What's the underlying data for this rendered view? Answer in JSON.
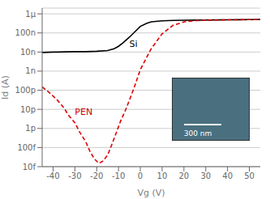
{
  "chart_data": {
    "type": "line",
    "xlabel": "Vg (V)",
    "ylabel": "Id (A)",
    "xlim": [
      -45,
      55
    ],
    "ylim": [
      1e-14,
      2e-06
    ],
    "log": "y",
    "grid": true,
    "xticks": [
      -40,
      -30,
      -20,
      -10,
      0,
      10,
      20,
      30,
      40,
      50
    ],
    "yticks": [
      {
        "value": 1e-14,
        "label": "10f"
      },
      {
        "value": 1e-13,
        "label": "100f"
      },
      {
        "value": 1e-12,
        "label": "1p"
      },
      {
        "value": 1e-11,
        "label": "10p"
      },
      {
        "value": 1e-10,
        "label": "100p"
      },
      {
        "value": 1e-09,
        "label": "1n"
      },
      {
        "value": 1e-08,
        "label": "10n"
      },
      {
        "value": 1e-07,
        "label": "100n"
      },
      {
        "value": 1e-06,
        "label": "1μ"
      }
    ],
    "series": [
      {
        "name": "Si",
        "color": "#000000",
        "line_style": "solid",
        "x": [
          -45,
          -40,
          -38,
          -35,
          -30,
          -25,
          -20,
          -15,
          -12,
          -10,
          -8,
          -5,
          -2,
          0,
          3,
          5,
          8,
          10,
          15,
          20,
          25,
          30,
          35,
          40,
          45,
          50,
          55
        ],
        "values": [
          9.5e-09,
          1e-08,
          1e-08,
          1.02e-08,
          1.05e-08,
          1.05e-08,
          1.1e-08,
          1.2e-08,
          1.5e-08,
          2e-08,
          3e-08,
          6e-08,
          1.3e-07,
          2.2e-07,
          3.2e-07,
          3.8e-07,
          4.1e-07,
          4.3e-07,
          4.5e-07,
          4.6e-07,
          4.7e-07,
          4.75e-07,
          4.8e-07,
          4.85e-07,
          4.9e-07,
          5e-07,
          5.1e-07
        ]
      },
      {
        "name": "PEN",
        "color": "#dd0000",
        "line_style": "dashed",
        "x": [
          -45,
          -42,
          -40,
          -38,
          -35,
          -33,
          -30,
          -28,
          -25,
          -23,
          -21,
          -19,
          -17,
          -15,
          -13,
          -11,
          -9,
          -7,
          -5,
          -3,
          0,
          5,
          10,
          15,
          20,
          25,
          30,
          35,
          40,
          45,
          50,
          55
        ],
        "values": [
          1.5e-10,
          8e-11,
          5e-11,
          3e-11,
          1.2e-11,
          5e-12,
          2e-12,
          7e-13,
          2e-13,
          6e-14,
          2.5e-14,
          1.5e-14,
          2e-14,
          4e-14,
          1.5e-13,
          6e-13,
          2.5e-12,
          8e-12,
          3e-11,
          1.2e-10,
          1.2e-09,
          1.5e-08,
          9e-08,
          2.5e-07,
          3.8e-07,
          4.4e-07,
          4.6e-07,
          4.75e-07,
          4.85e-07,
          4.9e-07,
          5e-07,
          5.1e-07
        ]
      }
    ],
    "annotations": [
      {
        "text": "Si",
        "x": -5,
        "y": 1.8e-08,
        "color": "#000000"
      },
      {
        "text": "PEN",
        "x": -30,
        "y": 5e-12,
        "color": "#cc0000"
      },
      {
        "text": "300 nm",
        "color": "#ffffff",
        "background": "#4a7080"
      }
    ]
  }
}
